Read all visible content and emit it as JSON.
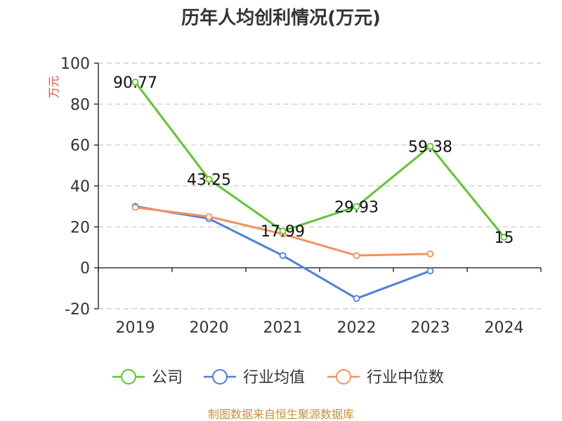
{
  "title": "历年人均创利情况(万元)",
  "source": "制图数据来自恒生聚源数据库",
  "colors": {
    "公司": "#5cc72e",
    "行业均值": "#4f7fdc",
    "行业中位数": "#f4915e",
    "grid": "#c8c8c8",
    "axis": "#333333"
  },
  "chart_data": {
    "type": "line",
    "title": "历年人均创利情况(万元)",
    "ylabel": "万元",
    "xlabel": "",
    "categories": [
      "2019",
      "2020",
      "2021",
      "2022",
      "2023",
      "2024"
    ],
    "ylim": [
      -20,
      100
    ],
    "yticks": [
      -20,
      0,
      20,
      40,
      60,
      80,
      100
    ],
    "grid": true,
    "legend": "bottom",
    "series": [
      {
        "name": "公司",
        "values": [
          90.77,
          43.25,
          17.99,
          29.93,
          59.38,
          15
        ],
        "labels": [
          "90.77",
          "43.25",
          "17.99",
          "29.93",
          "59.38",
          "15"
        ]
      },
      {
        "name": "行业均值",
        "values": [
          30,
          24,
          6,
          -15,
          -1.5,
          null
        ]
      },
      {
        "name": "行业中位数",
        "values": [
          29.5,
          25,
          16.5,
          6,
          6.8,
          null
        ]
      }
    ]
  }
}
